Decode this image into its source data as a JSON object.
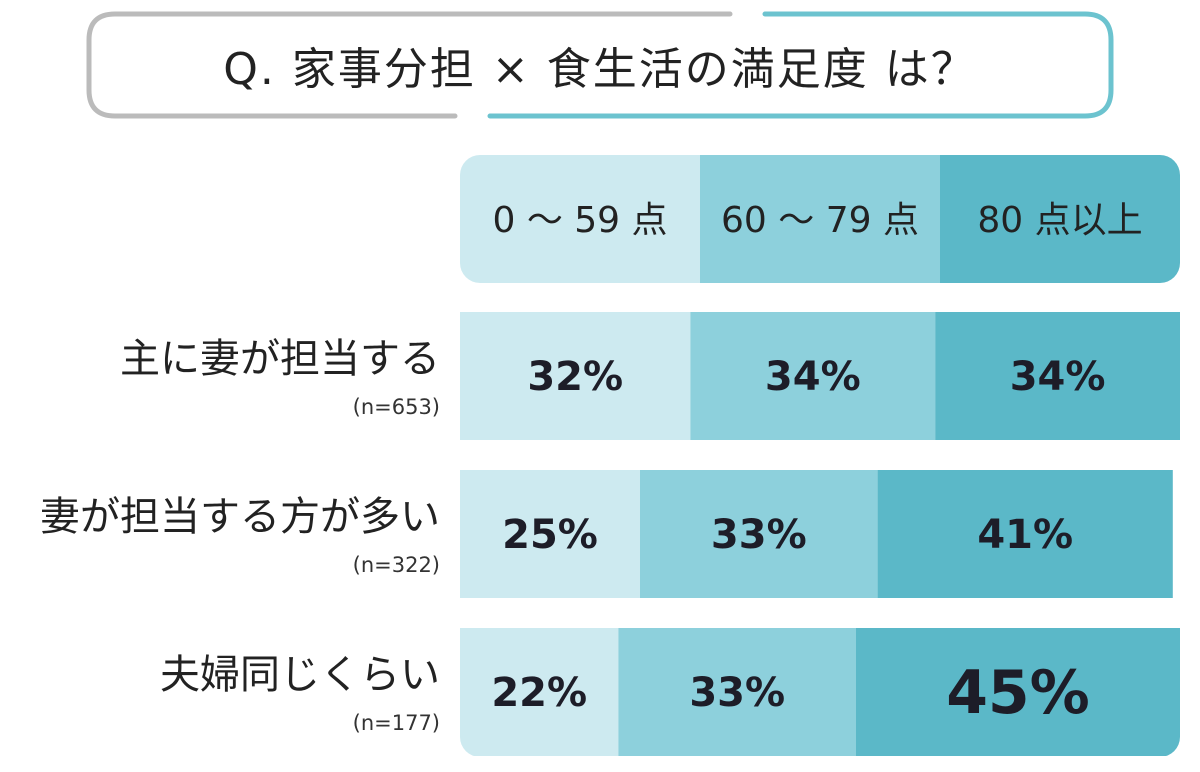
{
  "title": "Q. 家事分担 × 食生活の満足度 は？",
  "colors": {
    "segment_low": "#cdeaf0",
    "segment_mid": "#8dd0dc",
    "segment_high": "#5bb8c8",
    "title_border_gray": "#bbbbbb",
    "title_border_teal": "#6cc3cf"
  },
  "chart_data": {
    "type": "bar",
    "orientation": "horizontal",
    "stacked": true,
    "categories": [
      {
        "label": "主に妻が担当する",
        "n": "(n=653)"
      },
      {
        "label": "妻が担当する方が多い",
        "n": "(n=322)"
      },
      {
        "label": "夫婦同じくらい",
        "n": "(n=177)"
      }
    ],
    "series": [
      {
        "name": "0 〜 59 点",
        "values": [
          32,
          25,
          22
        ]
      },
      {
        "name": "60 〜 79 点",
        "values": [
          34,
          33,
          33
        ]
      },
      {
        "name": "80 点以上",
        "values": [
          34,
          41,
          45
        ]
      }
    ],
    "value_labels": [
      [
        "32%",
        "34%",
        "34%"
      ],
      [
        "25%",
        "33%",
        "41%"
      ],
      [
        "22%",
        "33%",
        "45%"
      ]
    ],
    "xlim": [
      0,
      100
    ],
    "legend_placement": "top"
  }
}
